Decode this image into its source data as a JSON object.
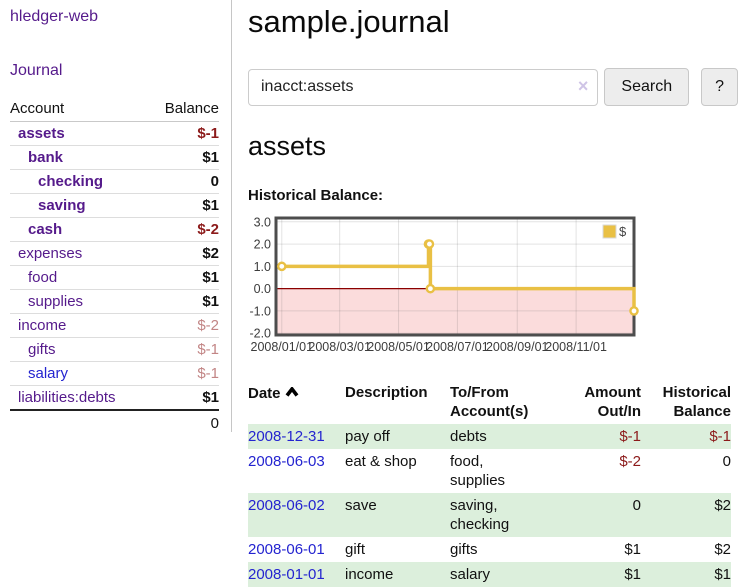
{
  "sidebar": {
    "brand": "hledger-web",
    "nav": {
      "journal": "Journal"
    },
    "accounts_table": {
      "headers": {
        "account": "Account",
        "balance": "Balance"
      },
      "rows": [
        {
          "name": "assets",
          "indent": 1,
          "bold": true,
          "balance": "$-1"
        },
        {
          "name": "bank",
          "indent": 2,
          "bold": true,
          "balance": "$1"
        },
        {
          "name": "checking",
          "indent": 3,
          "bold": true,
          "balance": "0"
        },
        {
          "name": "saving",
          "indent": 3,
          "bold": true,
          "balance": "$1"
        },
        {
          "name": "cash",
          "indent": 2,
          "bold": true,
          "balance": "$-2"
        },
        {
          "name": "expenses",
          "indent": 1,
          "bold": false,
          "balance": "$2"
        },
        {
          "name": "food",
          "indent": 2,
          "bold": false,
          "balance": "$1"
        },
        {
          "name": "supplies",
          "indent": 2,
          "bold": false,
          "balance": "$1"
        },
        {
          "name": "income",
          "indent": 1,
          "bold": false,
          "balance": "$-2"
        },
        {
          "name": "gifts",
          "indent": 2,
          "bold": false,
          "balance": "$-1"
        },
        {
          "name": "salary",
          "indent": 2,
          "bold": false,
          "balance": "$-1",
          "active": true
        },
        {
          "name": "liabilities:debts",
          "indent": 1,
          "bold": false,
          "balance": "$1"
        }
      ],
      "total": "0"
    }
  },
  "header": {
    "title": "sample.journal"
  },
  "search": {
    "value": "inacct:assets",
    "clear_label": "×",
    "button": "Search",
    "help_button": "?"
  },
  "account_page": {
    "heading": "assets",
    "chart_label": "Historical Balance:"
  },
  "chart_data": {
    "type": "line",
    "title": "Historical Balance",
    "step": true,
    "legend": "$",
    "legend_position": "top-right",
    "series": [
      {
        "name": "$",
        "color": "#e9c044",
        "points": [
          {
            "date": "2008-01-01",
            "day": 0,
            "value": 1
          },
          {
            "date": "2008-06-01",
            "day": 152,
            "value": 2
          },
          {
            "date": "2008-06-02",
            "day": 153,
            "value": 2
          },
          {
            "date": "2008-06-03",
            "day": 154,
            "value": 0
          },
          {
            "date": "2008-12-31",
            "day": 365,
            "value": -1
          }
        ]
      }
    ],
    "x_ticks": [
      {
        "label": "2008/01/01",
        "day": 0
      },
      {
        "label": "2008/03/01",
        "day": 60
      },
      {
        "label": "2008/05/01",
        "day": 121
      },
      {
        "label": "2008/07/01",
        "day": 182
      },
      {
        "label": "2008/09/01",
        "day": 244
      },
      {
        "label": "2008/11/01",
        "day": 305
      }
    ],
    "y_ticks": [
      {
        "label": "3.0",
        "value": 3
      },
      {
        "label": "2.0",
        "value": 2
      },
      {
        "label": "1.0",
        "value": 1
      },
      {
        "label": "0.0",
        "value": 0
      },
      {
        "label": "-1.0",
        "value": -1
      },
      {
        "label": "-2.0",
        "value": -2
      }
    ],
    "ylim": [
      -2.08,
      3.17
    ],
    "xlim_days": [
      -6,
      365
    ],
    "grid": true,
    "negative_region_color": "#fbdcdc",
    "zero_line_color": "#8b0000"
  },
  "register": {
    "headers": {
      "date": "Date",
      "description": "Description",
      "accounts": "To/From Account(s)",
      "amount": "Amount Out/In",
      "balance": "Historical Balance"
    },
    "sort": {
      "column": "Date",
      "direction": "ascending"
    },
    "rows": [
      {
        "date": "2008-12-31",
        "description": "pay off",
        "accounts": "debts",
        "amount": "$-1",
        "balance": "$-1"
      },
      {
        "date": "2008-06-03",
        "description": "eat & shop",
        "accounts": "food, supplies",
        "amount": "$-2",
        "balance": "0"
      },
      {
        "date": "2008-06-02",
        "description": "save",
        "accounts": "saving, checking",
        "amount": "0",
        "balance": "$2"
      },
      {
        "date": "2008-06-01",
        "description": "gift",
        "accounts": "gifts",
        "amount": "$1",
        "balance": "$2"
      },
      {
        "date": "2008-01-01",
        "description": "income",
        "accounts": "salary",
        "amount": "$1",
        "balance": "$1"
      }
    ]
  },
  "colors": {
    "link_purple": "#551a8b",
    "link_blue": "#2424d0",
    "negative_strong": "#8c1a1a",
    "negative_soft": "#c28585",
    "row_green": "#dcefdc",
    "series_yellow": "#e9c044",
    "negative_region_pink": "#fbdcdc",
    "zero_line_red": "#8b0000"
  }
}
